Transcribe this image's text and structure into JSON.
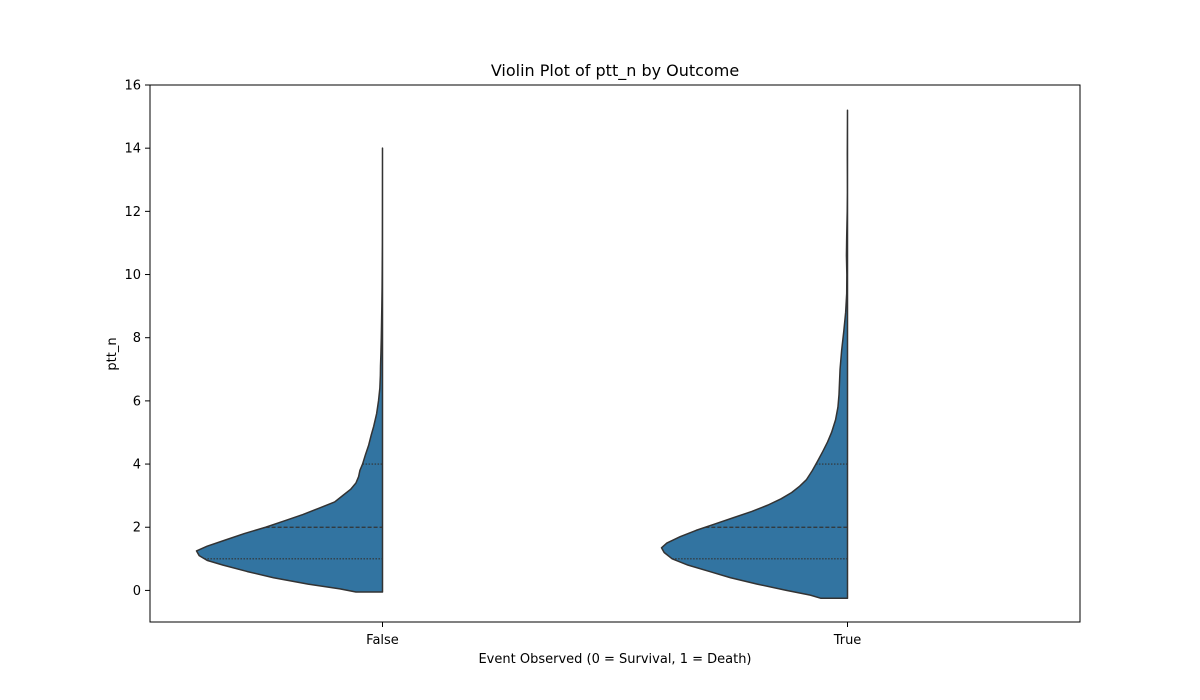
{
  "chart_data": {
    "type": "violin",
    "title": "Violin Plot of ptt_n by Outcome",
    "xlabel": "Event Observed (0 = Survival, 1 = Death)",
    "ylabel": "ptt_n",
    "categories": [
      "False",
      "True"
    ],
    "ylim": [
      -1,
      16
    ],
    "yticks": [
      0,
      2,
      4,
      6,
      8,
      10,
      12,
      14,
      16
    ],
    "grid": false,
    "fill_color": "#3274a1",
    "edge_color": "#333333",
    "violins": [
      {
        "category": "False",
        "quartiles": [
          1.0,
          2.0,
          4.0
        ],
        "profile": [
          [
            -0.05,
            0.1
          ],
          [
            0.05,
            0.16
          ],
          [
            0.2,
            0.28
          ],
          [
            0.4,
            0.41
          ],
          [
            0.6,
            0.51
          ],
          [
            0.8,
            0.6
          ],
          [
            0.95,
            0.66
          ],
          [
            1.1,
            0.69
          ],
          [
            1.25,
            0.7
          ],
          [
            1.4,
            0.66
          ],
          [
            1.6,
            0.59
          ],
          [
            1.8,
            0.52
          ],
          [
            2.0,
            0.44
          ],
          [
            2.2,
            0.37
          ],
          [
            2.4,
            0.3
          ],
          [
            2.6,
            0.24
          ],
          [
            2.8,
            0.18
          ],
          [
            3.0,
            0.15
          ],
          [
            3.2,
            0.12
          ],
          [
            3.4,
            0.1
          ],
          [
            3.6,
            0.09
          ],
          [
            3.8,
            0.085
          ],
          [
            4.0,
            0.075
          ],
          [
            4.3,
            0.064
          ],
          [
            4.6,
            0.052
          ],
          [
            4.9,
            0.043
          ],
          [
            5.2,
            0.033
          ],
          [
            5.6,
            0.022
          ],
          [
            6.0,
            0.015
          ],
          [
            6.4,
            0.01
          ],
          [
            6.8,
            0.008
          ],
          [
            7.1,
            0.0075
          ],
          [
            7.5,
            0.006
          ],
          [
            8.0,
            0.0045
          ],
          [
            8.5,
            0.0035
          ],
          [
            9.0,
            0.0025
          ],
          [
            9.6,
            0.0015
          ],
          [
            10.2,
            0.001
          ],
          [
            11.0,
            0.0005
          ],
          [
            12.0,
            0.0003
          ],
          [
            13.0,
            0.0002
          ],
          [
            14.0,
            5e-05
          ]
        ]
      },
      {
        "category": "True",
        "quartiles": [
          1.0,
          2.0,
          4.0
        ],
        "profile": [
          [
            -0.25,
            0.1
          ],
          [
            -0.15,
            0.14
          ],
          [
            0.0,
            0.23
          ],
          [
            0.2,
            0.34
          ],
          [
            0.4,
            0.44
          ],
          [
            0.6,
            0.52
          ],
          [
            0.8,
            0.6
          ],
          [
            1.0,
            0.66
          ],
          [
            1.2,
            0.69
          ],
          [
            1.35,
            0.7
          ],
          [
            1.5,
            0.68
          ],
          [
            1.7,
            0.63
          ],
          [
            1.9,
            0.57
          ],
          [
            2.1,
            0.5
          ],
          [
            2.3,
            0.43
          ],
          [
            2.5,
            0.36
          ],
          [
            2.7,
            0.3
          ],
          [
            2.9,
            0.25
          ],
          [
            3.1,
            0.21
          ],
          [
            3.3,
            0.18
          ],
          [
            3.5,
            0.155
          ],
          [
            3.8,
            0.132
          ],
          [
            4.1,
            0.112
          ],
          [
            4.4,
            0.093
          ],
          [
            4.7,
            0.075
          ],
          [
            5.0,
            0.06
          ],
          [
            5.4,
            0.045
          ],
          [
            5.8,
            0.036
          ],
          [
            6.2,
            0.032
          ],
          [
            6.6,
            0.03
          ],
          [
            7.0,
            0.028
          ],
          [
            7.6,
            0.022
          ],
          [
            8.2,
            0.014
          ],
          [
            8.8,
            0.007
          ],
          [
            9.4,
            0.003
          ],
          [
            10.0,
            0.0025
          ],
          [
            10.6,
            0.004
          ],
          [
            11.2,
            0.003
          ],
          [
            12.0,
            0.001
          ],
          [
            12.6,
            0.0004
          ],
          [
            13.2,
            0.0005
          ],
          [
            13.8,
            0.0007
          ],
          [
            14.4,
            0.0004
          ],
          [
            15.2,
            5e-05
          ]
        ]
      }
    ]
  }
}
